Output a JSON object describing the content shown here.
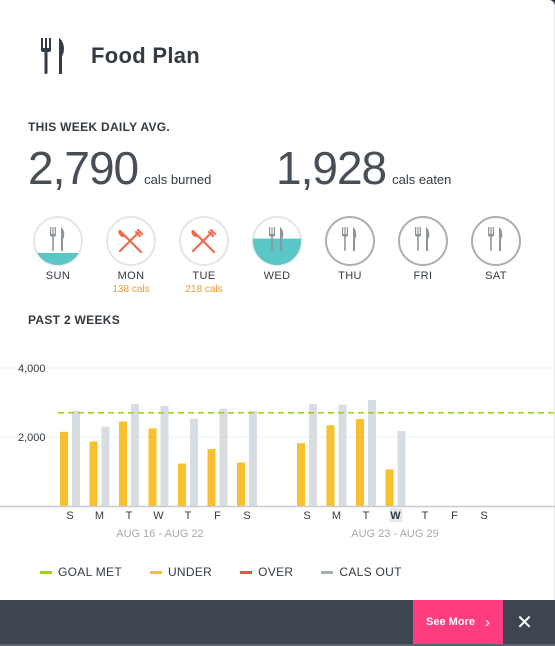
{
  "header": {
    "title": "Food Plan",
    "icon": "fork-knife-icon"
  },
  "weekly": {
    "label": "THIS WEEK DAILY AVG.",
    "burned": {
      "value": "2,790",
      "unit": "cals burned"
    },
    "eaten": {
      "value": "1,928",
      "unit": "cals eaten"
    }
  },
  "days": [
    {
      "label": "SUN",
      "sub": "",
      "state": "partial",
      "fill": 0.25
    },
    {
      "label": "MON",
      "sub": "138 cals",
      "state": "over",
      "fill": 0
    },
    {
      "label": "TUE",
      "sub": "218 cals",
      "state": "over",
      "fill": 0
    },
    {
      "label": "WED",
      "sub": "",
      "state": "partial",
      "fill": 0.55
    },
    {
      "label": "THU",
      "sub": "",
      "state": "empty",
      "fill": 0
    },
    {
      "label": "FRI",
      "sub": "",
      "state": "empty",
      "fill": 0
    },
    {
      "label": "SAT",
      "sub": "",
      "state": "empty",
      "fill": 0
    }
  ],
  "past_label": "PAST 2 WEEKS",
  "chart_data": {
    "type": "bar",
    "ylim": [
      0,
      4000
    ],
    "yticks": [
      "2,000",
      "4,000"
    ],
    "goal": 2700,
    "weeks": [
      {
        "label": "AUG 16 - AUG 22",
        "days": [
          "S",
          "M",
          "T",
          "W",
          "T",
          "F",
          "S"
        ]
      },
      {
        "label": "AUG 23 - AUG 29",
        "days": [
          "S",
          "M",
          "T",
          "W",
          "T",
          "F",
          "S"
        ],
        "bold_index": 3
      }
    ],
    "series": [
      {
        "name": "UNDER",
        "values": [
          2150,
          1870,
          2450,
          2250,
          1230,
          1650,
          1260,
          1820,
          2340,
          2520,
          1060,
          null,
          null,
          null
        ]
      },
      {
        "name": "CALS OUT",
        "values": [
          2760,
          2300,
          2950,
          2900,
          2530,
          2820,
          2760,
          2950,
          2940,
          3070,
          2170,
          null,
          null,
          null
        ]
      }
    ],
    "colors": {
      "under": "#f9c02e",
      "cals_out": "#d7dde0",
      "goal": "#9fd21a",
      "over": "#e8524a"
    }
  },
  "legend": [
    {
      "label": "GOAL MET",
      "color": "#9fd21a"
    },
    {
      "label": "UNDER",
      "color": "#f9c02e"
    },
    {
      "label": "OVER",
      "color": "#e8524a"
    },
    {
      "label": "CALS OUT",
      "color": "#a8b0b6"
    }
  ],
  "footer": {
    "see_more": "See More",
    "close": "✕"
  }
}
